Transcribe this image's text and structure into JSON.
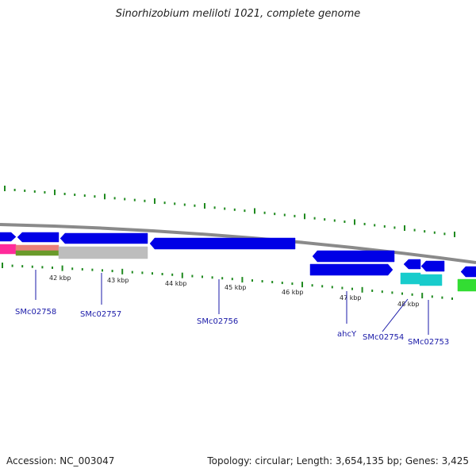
{
  "title": "Sinorhizobium meliloti 1021, complete genome",
  "footer": {
    "accession": "Accession: NC_003047",
    "stats": "Topology: circular; Length: 3,654,135 bp; Genes: 3,425"
  },
  "colors": {
    "background": "#ffffff",
    "backbone": "#8a8a8a",
    "forward_gene": "#0000e6",
    "reverse_gene": "#0000e6",
    "tick_mark": "#1f8a1f",
    "label_line": "#1a1aa8",
    "label_text": "#1a1aa8",
    "pink_feature": "#ff2a9a",
    "salmon_feature": "#e8807a",
    "olive_feature": "#6a9a2a",
    "gray_feature": "#bdbdbd",
    "cyan_feature": "#18cccc",
    "green_feature": "#33dd33"
  },
  "kbp_labels": [
    "42 kbp",
    "43 kbp",
    "44 kbp",
    "45 kbp",
    "46 kbp",
    "47 kbp",
    "48 kbp"
  ],
  "gene_labels": [
    "SMc02758",
    "SMc02757",
    "SMc02756",
    "ahcY",
    "SMc02754",
    "SMc02753"
  ]
}
